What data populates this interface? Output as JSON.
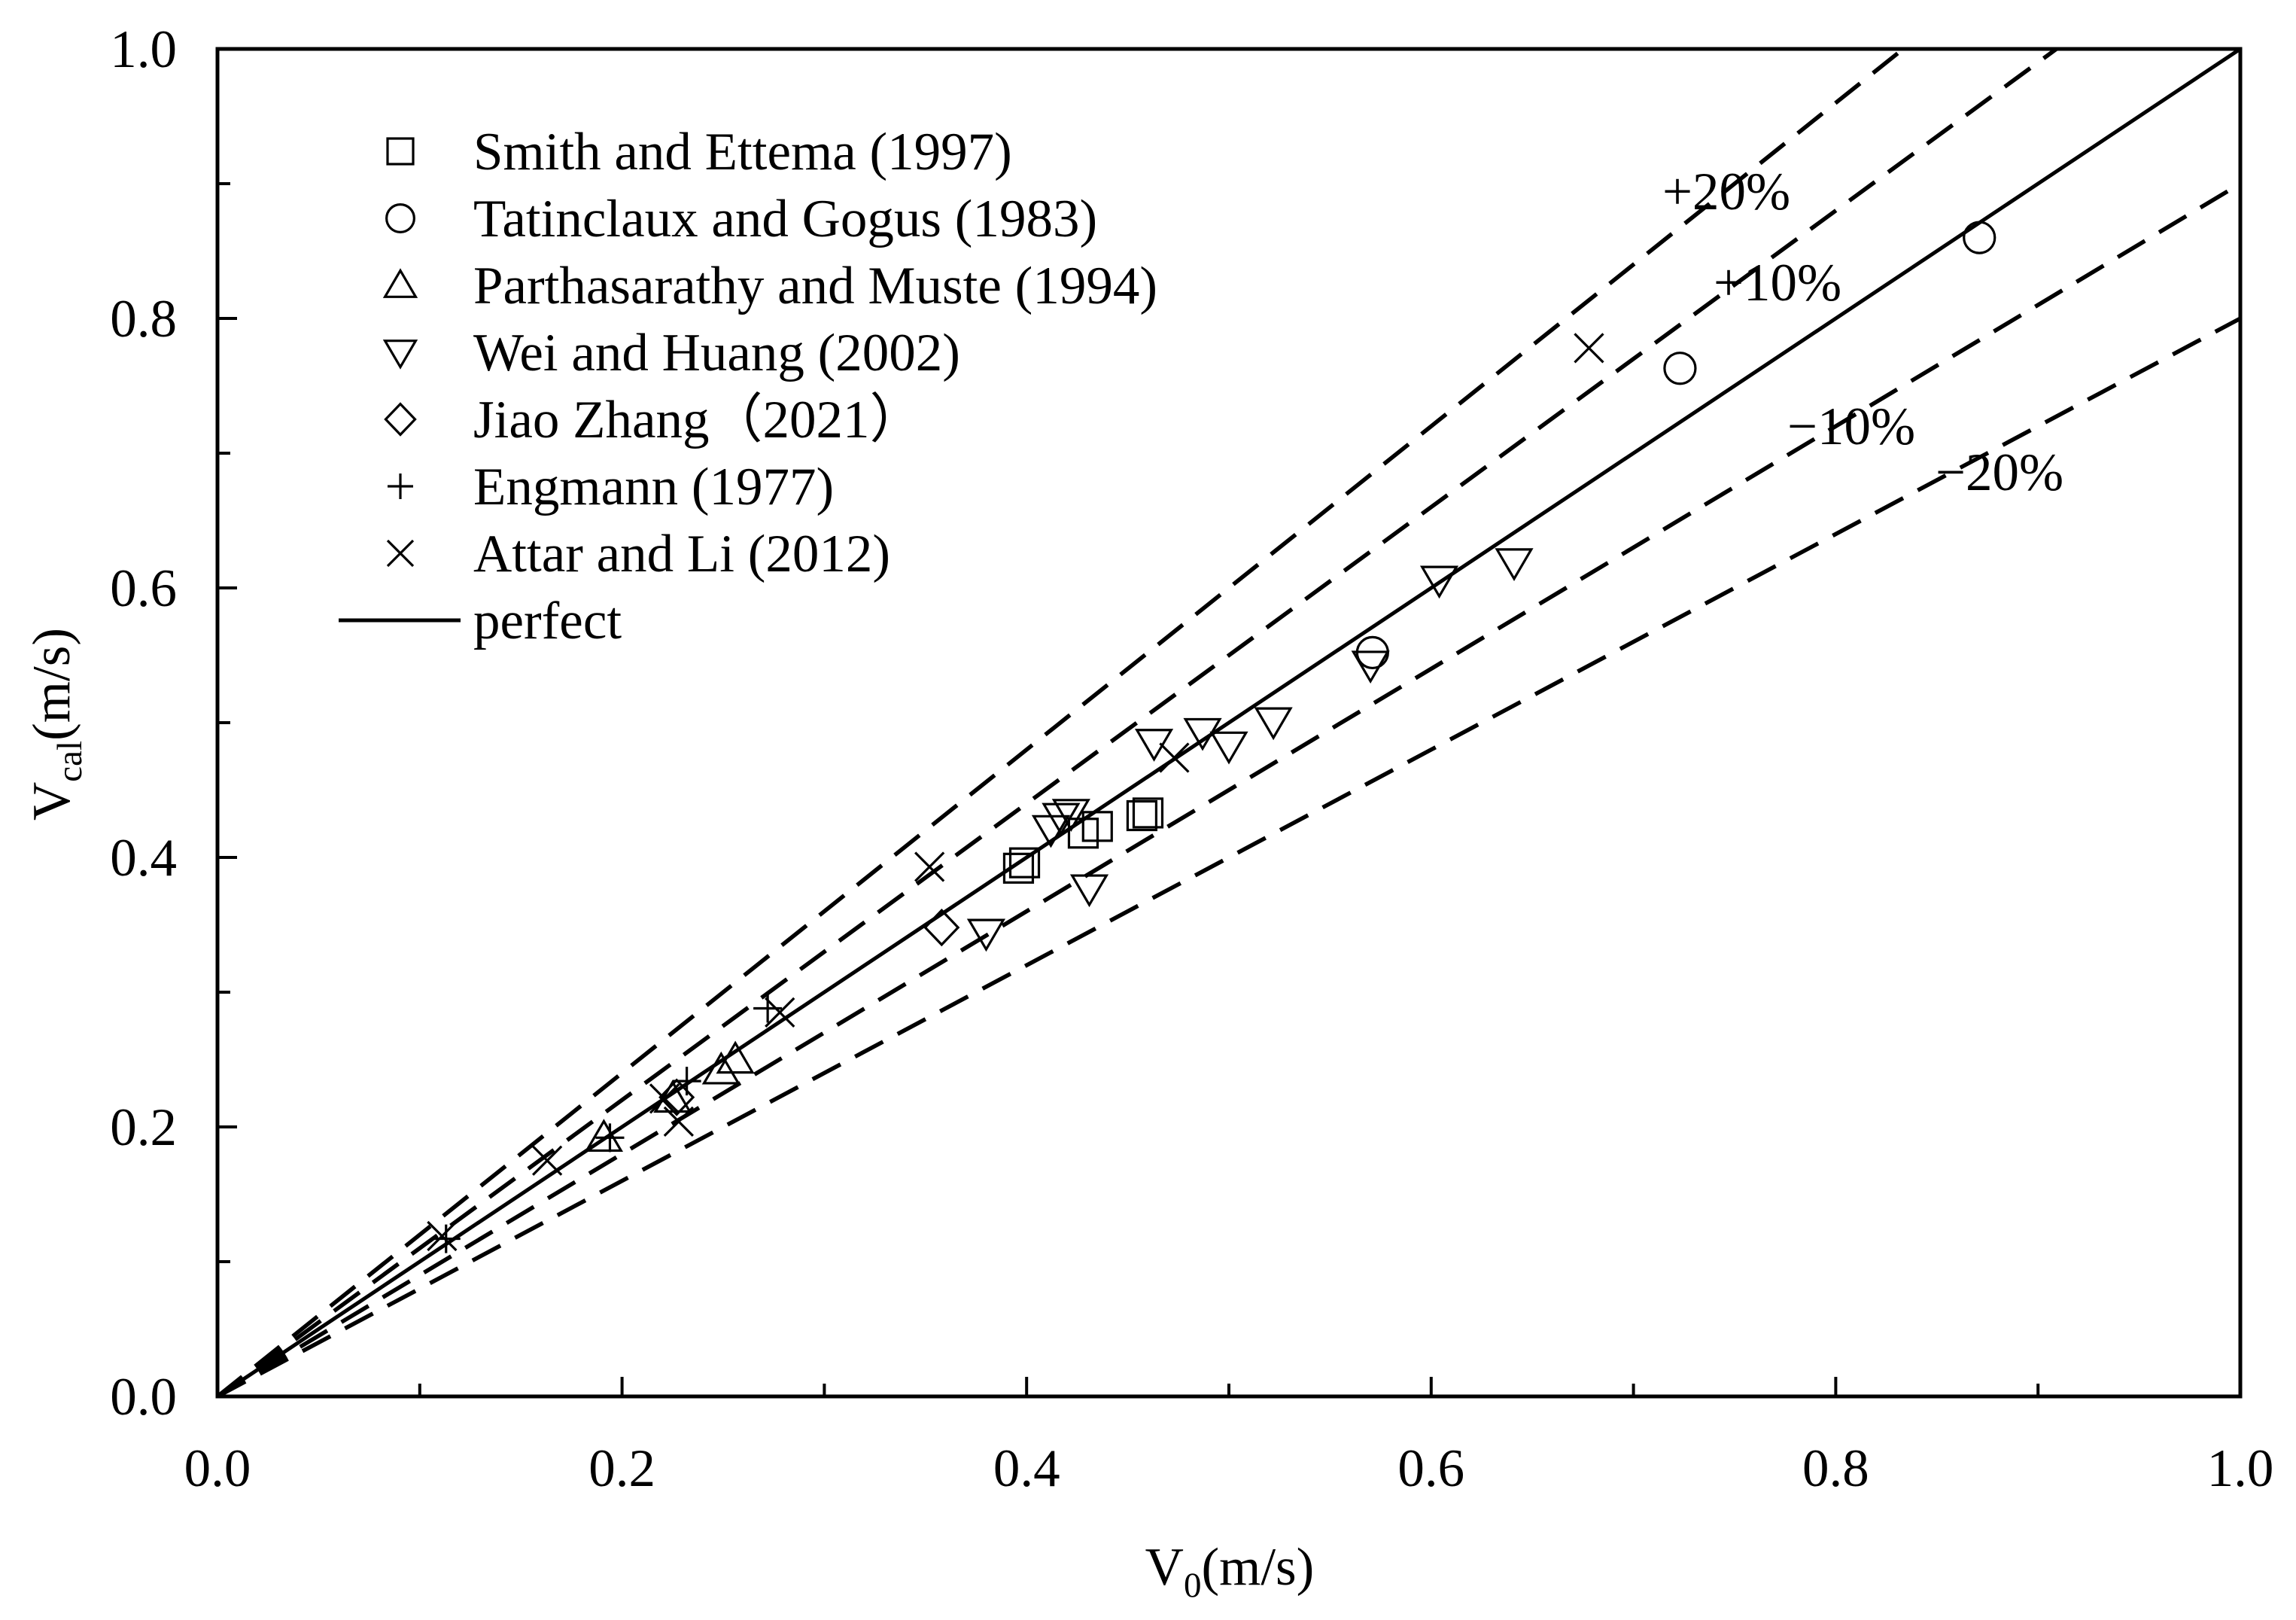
{
  "chart_data": {
    "type": "scatter",
    "xlabel": {
      "main": "V",
      "sub": "0",
      "rest": "(m/s)"
    },
    "ylabel": {
      "main": "V",
      "sub": "cal",
      "rest": "(m/s)"
    },
    "xlim": [
      0,
      1
    ],
    "ylim": [
      0,
      1
    ],
    "xticks": [
      "0.0",
      "0.2",
      "0.4",
      "0.6",
      "0.8",
      "1.0"
    ],
    "yticks": [
      "0.0",
      "0.2",
      "0.4",
      "0.6",
      "0.8",
      "1.0"
    ],
    "major_tick_step": 0.2,
    "minor_tick_step": 0.1,
    "grid": false,
    "legend_position": "top-left",
    "marker_color": "#000000",
    "series": [
      {
        "name": "Smith and Ettema (1997)",
        "marker": "square",
        "points": [
          [
            0.396,
            0.392
          ],
          [
            0.399,
            0.396
          ],
          [
            0.428,
            0.418
          ],
          [
            0.435,
            0.423
          ],
          [
            0.457,
            0.431
          ],
          [
            0.46,
            0.433
          ]
        ]
      },
      {
        "name": "Tatinclaux and Gogus (1983)",
        "marker": "circle",
        "points": [
          [
            0.571,
            0.552
          ],
          [
            0.723,
            0.763
          ],
          [
            0.871,
            0.86
          ]
        ]
      },
      {
        "name": "Parthasarathy and Muste (1994)",
        "marker": "triangle-up",
        "points": [
          [
            0.191,
            0.192
          ],
          [
            0.225,
            0.221
          ],
          [
            0.249,
            0.242
          ],
          [
            0.256,
            0.25
          ]
        ]
      },
      {
        "name": "Wei and Huang (2002)",
        "marker": "triangle-down",
        "points": [
          [
            0.38,
            0.344
          ],
          [
            0.412,
            0.421
          ],
          [
            0.417,
            0.43
          ],
          [
            0.422,
            0.433
          ],
          [
            0.431,
            0.377
          ],
          [
            0.463,
            0.485
          ],
          [
            0.487,
            0.493
          ],
          [
            0.5,
            0.483
          ],
          [
            0.522,
            0.501
          ],
          [
            0.57,
            0.543
          ],
          [
            0.604,
            0.606
          ],
          [
            0.641,
            0.619
          ]
        ]
      },
      {
        "name": "Jiao Zhang（2021）",
        "marker": "diamond",
        "points": [
          [
            0.227,
            0.222
          ],
          [
            0.358,
            0.348
          ]
        ]
      },
      {
        "name": "Engmann (1977)",
        "marker": "plus",
        "points": [
          [
            0.113,
            0.117
          ],
          [
            0.194,
            0.192
          ],
          [
            0.232,
            0.234
          ],
          [
            0.272,
            0.288
          ]
        ]
      },
      {
        "name": "Attar and Li (2012)",
        "marker": "cross",
        "points": [
          [
            0.111,
            0.119
          ],
          [
            0.163,
            0.175
          ],
          [
            0.221,
            0.221
          ],
          [
            0.228,
            0.204
          ],
          [
            0.278,
            0.285
          ],
          [
            0.352,
            0.393
          ],
          [
            0.473,
            0.474
          ],
          [
            0.678,
            0.778
          ]
        ]
      }
    ],
    "reference_lines": [
      {
        "name": "perfect",
        "slope": 1.0,
        "dashed": false,
        "in_legend": true
      },
      {
        "label": "+20%",
        "slope": 1.2,
        "dashed": true
      },
      {
        "label": "+10%",
        "slope": 1.1,
        "dashed": true
      },
      {
        "label": "−10%",
        "slope": 0.9,
        "dashed": true
      },
      {
        "label": "−20%",
        "slope": 0.8,
        "dashed": true
      }
    ]
  }
}
